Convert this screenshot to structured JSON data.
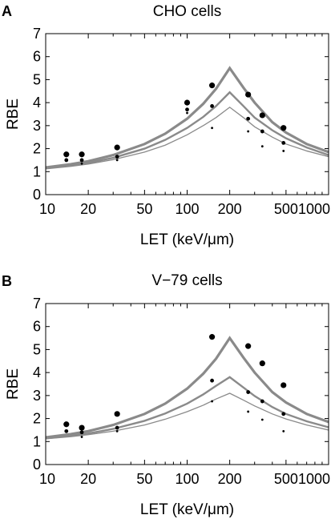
{
  "chart_data": [
    {
      "type": "line",
      "panel_label": "A",
      "title": "CHO cells",
      "xlabel": "LET (keV/μm)",
      "ylabel": "RBE",
      "xscale": "log",
      "xlim": [
        10,
        1000
      ],
      "ylim": [
        0,
        7
      ],
      "xticks": [
        "10",
        "20",
        "50",
        "100",
        "200",
        "500",
        "1000"
      ],
      "yticks": [
        "0",
        "1",
        "2",
        "3",
        "4",
        "5",
        "6",
        "7"
      ],
      "grid": false,
      "legend": "none",
      "series": [
        {
          "style": "thick-curve",
          "x": [
            10,
            15,
            20,
            30,
            50,
            70,
            100,
            130,
            160,
            200,
            250,
            300,
            400,
            500,
            700,
            1000
          ],
          "values": [
            1.18,
            1.32,
            1.45,
            1.72,
            2.2,
            2.65,
            3.3,
            3.95,
            4.6,
            5.5,
            4.65,
            4.0,
            3.15,
            2.7,
            2.2,
            1.85
          ]
        },
        {
          "style": "medium-curve",
          "x": [
            10,
            15,
            20,
            30,
            50,
            70,
            100,
            130,
            160,
            200,
            250,
            300,
            400,
            500,
            700,
            1000
          ],
          "values": [
            1.15,
            1.27,
            1.38,
            1.6,
            2.0,
            2.38,
            2.9,
            3.38,
            3.85,
            4.45,
            3.85,
            3.35,
            2.8,
            2.45,
            2.05,
            1.72
          ]
        },
        {
          "style": "thin-curve",
          "x": [
            10,
            15,
            20,
            30,
            50,
            70,
            100,
            130,
            160,
            200,
            250,
            300,
            400,
            500,
            700,
            1000
          ],
          "values": [
            1.12,
            1.23,
            1.33,
            1.52,
            1.85,
            2.15,
            2.6,
            3.0,
            3.35,
            3.8,
            3.35,
            2.95,
            2.5,
            2.2,
            1.9,
            1.65
          ]
        },
        {
          "style": "large-points",
          "x": [
            14,
            18,
            32,
            100,
            150,
            270,
            340,
            480
          ],
          "values": [
            1.75,
            1.75,
            2.05,
            4.0,
            4.75,
            4.35,
            3.45,
            2.9
          ]
        },
        {
          "style": "medium-points",
          "x": [
            14,
            18,
            32,
            100,
            150,
            270,
            340,
            480
          ],
          "values": [
            1.5,
            1.5,
            1.65,
            3.7,
            3.85,
            3.3,
            2.75,
            2.25
          ]
        },
        {
          "style": "small-points",
          "x": [
            18,
            32,
            100,
            150,
            270,
            340,
            480
          ],
          "values": [
            1.35,
            1.5,
            3.55,
            2.9,
            2.75,
            2.1,
            1.9
          ]
        }
      ]
    },
    {
      "type": "line",
      "panel_label": "B",
      "title": "V−79 cells",
      "xlabel": "LET (keV/μm)",
      "ylabel": "RBE",
      "xscale": "log",
      "xlim": [
        10,
        1000
      ],
      "ylim": [
        0,
        7
      ],
      "xticks": [
        "10",
        "20",
        "50",
        "100",
        "200",
        "500",
        "1000"
      ],
      "yticks": [
        "0",
        "1",
        "2",
        "3",
        "4",
        "5",
        "6",
        "7"
      ],
      "grid": false,
      "legend": "none",
      "series": [
        {
          "style": "thick-curve",
          "x": [
            10,
            15,
            20,
            30,
            50,
            70,
            100,
            130,
            160,
            200,
            250,
            300,
            400,
            500,
            700,
            1000
          ],
          "values": [
            1.18,
            1.32,
            1.45,
            1.72,
            2.2,
            2.65,
            3.3,
            3.95,
            4.6,
            5.5,
            4.65,
            4.0,
            3.15,
            2.7,
            2.2,
            1.85
          ]
        },
        {
          "style": "medium-curve",
          "x": [
            10,
            15,
            20,
            30,
            50,
            70,
            100,
            130,
            160,
            200,
            250,
            300,
            400,
            500,
            700,
            1000
          ],
          "values": [
            1.14,
            1.25,
            1.35,
            1.55,
            1.9,
            2.22,
            2.65,
            3.05,
            3.42,
            3.8,
            3.35,
            2.98,
            2.5,
            2.2,
            1.88,
            1.62
          ]
        },
        {
          "style": "thin-curve",
          "x": [
            10,
            15,
            20,
            30,
            50,
            70,
            100,
            130,
            160,
            200,
            250,
            300,
            400,
            500,
            700,
            1000
          ],
          "values": [
            1.12,
            1.21,
            1.3,
            1.45,
            1.72,
            1.97,
            2.3,
            2.58,
            2.85,
            3.1,
            2.8,
            2.55,
            2.2,
            1.98,
            1.72,
            1.5
          ]
        },
        {
          "style": "large-points",
          "x": [
            14,
            18,
            32,
            150,
            270,
            340,
            480
          ],
          "values": [
            1.75,
            1.6,
            2.2,
            5.55,
            5.15,
            4.4,
            3.45
          ]
        },
        {
          "style": "medium-points",
          "x": [
            14,
            18,
            32,
            150,
            270,
            340,
            480
          ],
          "values": [
            1.45,
            1.4,
            1.6,
            3.65,
            3.15,
            2.75,
            2.2
          ]
        },
        {
          "style": "small-points",
          "x": [
            18,
            32,
            150,
            270,
            340,
            480
          ],
          "values": [
            1.2,
            1.45,
            2.75,
            2.3,
            1.95,
            1.45
          ]
        }
      ]
    }
  ]
}
